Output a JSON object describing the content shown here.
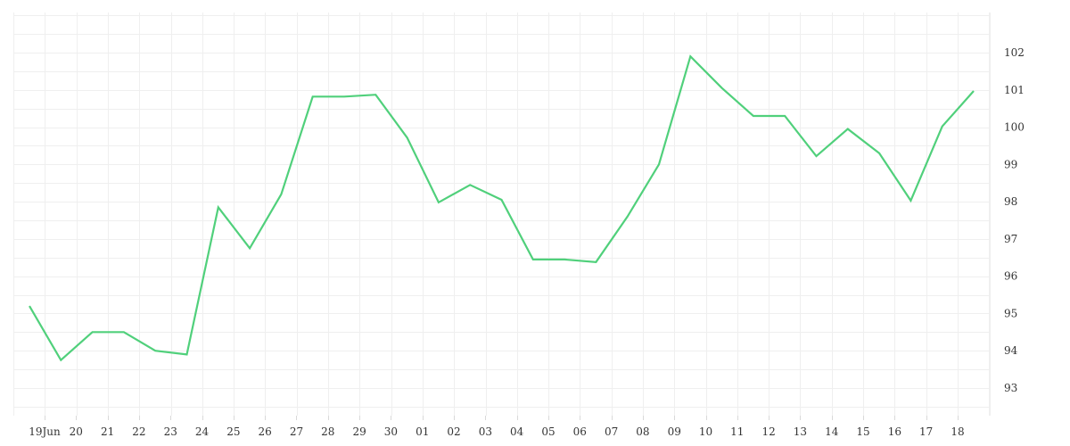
{
  "chart_data": {
    "type": "line",
    "title": "",
    "xlabel": "",
    "ylabel": "",
    "x_tick_labels": [
      "19Jun",
      "20",
      "21",
      "22",
      "23",
      "24",
      "25",
      "26",
      "27",
      "28",
      "29",
      "30",
      "01",
      "02",
      "03",
      "04",
      "05",
      "06",
      "07",
      "08",
      "09",
      "10",
      "11",
      "12",
      "13",
      "14",
      "15",
      "16",
      "17",
      "18"
    ],
    "y_ticks": [
      "93",
      "94",
      "95",
      "96",
      "97",
      "98",
      "99",
      "100",
      "101",
      "102"
    ],
    "ylim": [
      92.3,
      103.2
    ],
    "y_axis_position": "right",
    "grid": true,
    "legend": "none",
    "series": [
      {
        "color": "#50d07b",
        "values": [
          95.2,
          93.75,
          94.5,
          94.5,
          94.0,
          93.9,
          97.85,
          96.75,
          98.2,
          100.82,
          100.82,
          100.87,
          99.72,
          97.98,
          98.45,
          98.05,
          96.45,
          96.45,
          96.38,
          97.6,
          99.0,
          101.9,
          101.05,
          100.3,
          100.3,
          99.22,
          99.95,
          99.3,
          98.03,
          100.02,
          100.97
        ]
      }
    ]
  }
}
